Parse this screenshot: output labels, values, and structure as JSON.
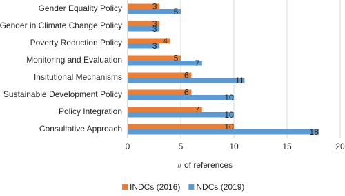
{
  "chart_data": {
    "type": "bar",
    "orientation": "horizontal",
    "x_label": "# of references",
    "categories": [
      "Gender Equality Policy",
      "Gender in Climate Change Policy",
      "Poverty Reduction Policy",
      "Monitoring and Evaluation",
      "Insitutional Mechanisms",
      "Sustainable Development Policy",
      "Policy Integration",
      "Consultative Approach"
    ],
    "series": [
      {
        "name": "INDCs (2016)",
        "color": "#ed7d31",
        "values": [
          3,
          3,
          4,
          5,
          6,
          6,
          7,
          10
        ]
      },
      {
        "name": "NDCs (2019)",
        "color": "#5b9bd5",
        "values": [
          5,
          3,
          3,
          7,
          11,
          10,
          10,
          18
        ]
      }
    ],
    "xlim": [
      0,
      20
    ],
    "xticks": [
      0,
      5,
      10,
      15,
      20
    ],
    "grid": true,
    "legend": "bottom"
  }
}
